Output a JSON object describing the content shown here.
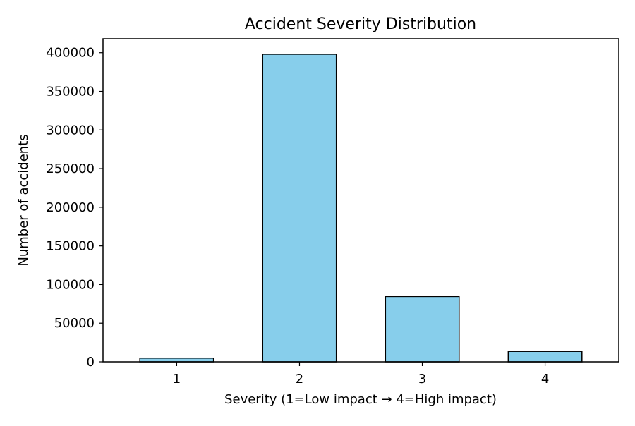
{
  "chart_data": {
    "type": "bar",
    "title": "Accident Severity Distribution",
    "xlabel": "Severity (1=Low impact → 4=High impact)",
    "ylabel": "Number of accidents",
    "categories": [
      "1",
      "2",
      "3",
      "4"
    ],
    "values": [
      4800,
      398000,
      84500,
      13500
    ],
    "ylim": [
      0,
      418000
    ],
    "yticks": [
      0,
      50000,
      100000,
      150000,
      200000,
      250000,
      300000,
      350000,
      400000
    ],
    "ytick_labels": [
      "0",
      "50000",
      "100000",
      "150000",
      "200000",
      "250000",
      "300000",
      "350000",
      "400000"
    ],
    "grid": false,
    "legend": "none",
    "bar_color": "#87CEEB",
    "edge_color": "#000000"
  }
}
